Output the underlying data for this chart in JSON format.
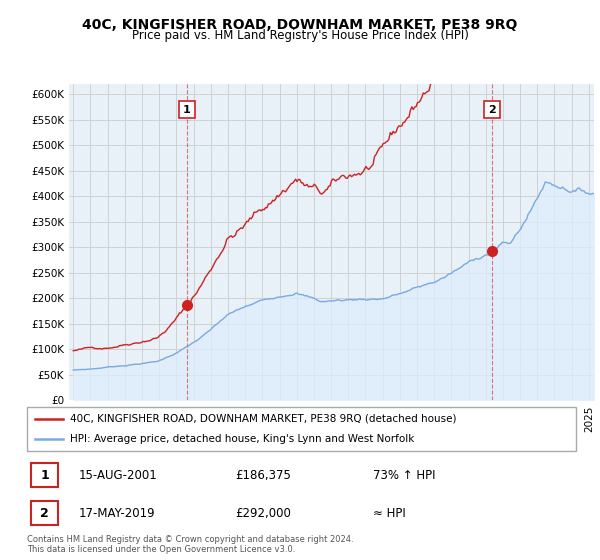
{
  "title": "40C, KINGFISHER ROAD, DOWNHAM MARKET, PE38 9RQ",
  "subtitle": "Price paid vs. HM Land Registry's House Price Index (HPI)",
  "ylim": [
    0,
    600000
  ],
  "xlim_start": 1994.75,
  "xlim_end": 2025.3,
  "hpi_color": "#7aaadd",
  "hpi_fill_color": "#ddeeff",
  "price_color": "#cc2222",
  "marker_color": "#cc2222",
  "dashed_color": "#cc2222",
  "sale1_x": 2001.617,
  "sale1_y": 186375,
  "sale2_x": 2019.37,
  "sale2_y": 292000,
  "legend_line1": "40C, KINGFISHER ROAD, DOWNHAM MARKET, PE38 9RQ (detached house)",
  "legend_line2": "HPI: Average price, detached house, King's Lynn and West Norfolk",
  "annotation1_date": "15-AUG-2001",
  "annotation1_price": "£186,375",
  "annotation1_hpi": "73% ↑ HPI",
  "annotation2_date": "17-MAY-2019",
  "annotation2_price": "£292,000",
  "annotation2_hpi": "≈ HPI",
  "footer": "Contains HM Land Registry data © Crown copyright and database right 2024.\nThis data is licensed under the Open Government Licence v3.0.",
  "background_color": "#ffffff",
  "grid_color": "#cccccc"
}
